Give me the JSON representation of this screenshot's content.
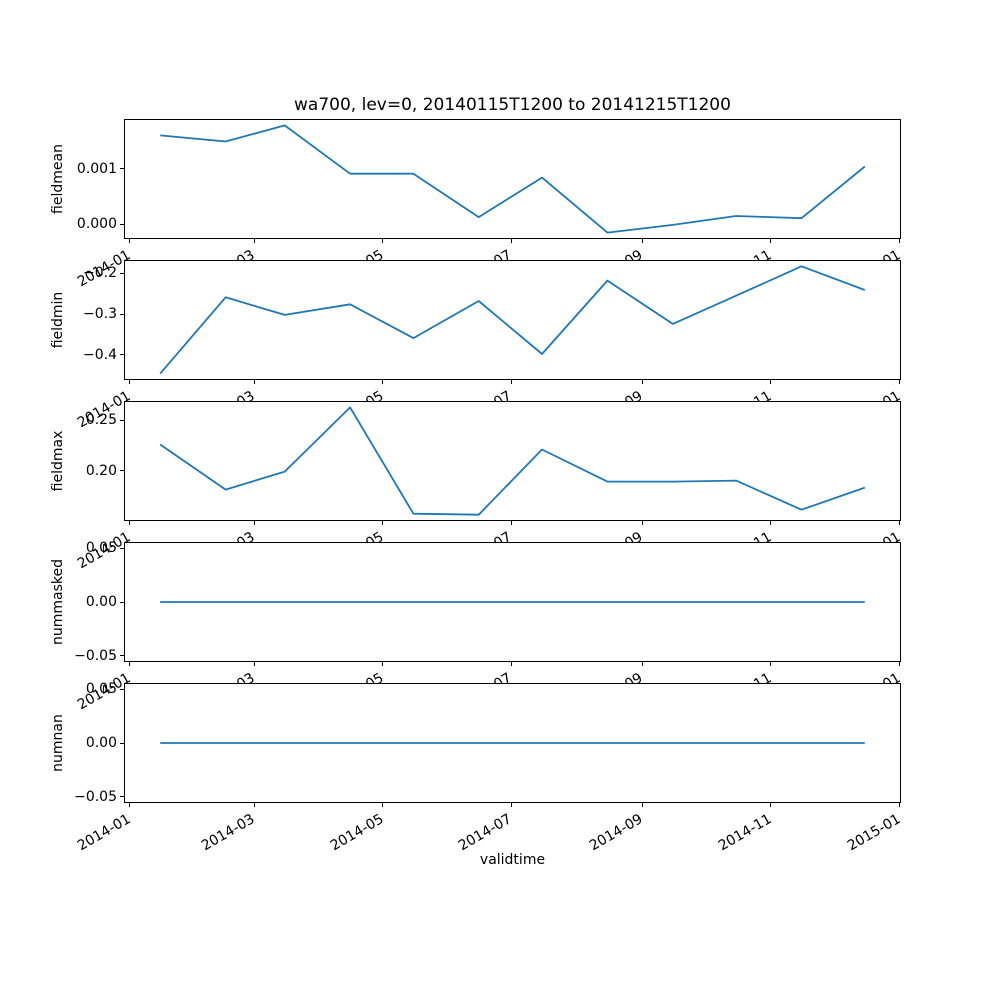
{
  "figure": {
    "title": "wa700, lev=0, 20140115T1200 to 20141215T1200",
    "xlabel": "validtime"
  },
  "chart_data": {
    "type": "line",
    "title": "wa700, lev=0, 20140115T1200 to 20141215T1200",
    "xlabel": "validtime",
    "line_color": "#1f77b4",
    "grid": false,
    "legend": false,
    "x_dates": [
      "2014-01-15T1200",
      "2014-02-15T1200",
      "2014-03-15T1200",
      "2014-04-15T1200",
      "2014-05-15T1200",
      "2014-06-15T1200",
      "2014-07-15T1200",
      "2014-08-15T1200",
      "2014-09-15T1200",
      "2014-10-15T1200",
      "2014-11-15T1200",
      "2014-12-15T1200"
    ],
    "x_days": [
      14.5,
      45.5,
      73.5,
      104.5,
      134.5,
      165.5,
      195.5,
      226.5,
      257.5,
      287.5,
      318.5,
      348.5
    ],
    "xlim": [
      -2.2,
      365.2
    ],
    "xticks": {
      "days": [
        0,
        59,
        120,
        181,
        243,
        304,
        365
      ],
      "labels": [
        "2014-01",
        "2014-03",
        "2014-05",
        "2014-07",
        "2014-09",
        "2014-11",
        "2015-01"
      ]
    },
    "subplots": [
      {
        "ylabel": "fieldmean",
        "values": [
          0.0016,
          0.00149,
          0.00178,
          0.00091,
          0.00091,
          0.00013,
          0.00084,
          -0.00015,
          -1e-05,
          0.00015,
          0.00011,
          0.00104
        ],
        "ylim": [
          -0.0002465,
          0.0018765
        ],
        "yticks": [
          {
            "value": 0.001,
            "label": "0.001"
          },
          {
            "value": 0.0,
            "label": "0.000"
          }
        ]
      },
      {
        "ylabel": "fieldmin",
        "values": [
          -0.446,
          -0.259,
          -0.302,
          -0.276,
          -0.359,
          -0.268,
          -0.398,
          -0.218,
          -0.324,
          -0.255,
          -0.183,
          -0.241
        ],
        "ylim": [
          -0.4592,
          -0.1699
        ],
        "yticks": [
          {
            "value": -0.2,
            "label": "−0.2"
          },
          {
            "value": -0.3,
            "label": "−0.3"
          },
          {
            "value": -0.4,
            "label": "−0.4"
          }
        ]
      },
      {
        "ylabel": "fieldmax",
        "values": [
          0.226,
          0.181,
          0.199,
          0.263,
          0.157,
          0.156,
          0.221,
          0.189,
          0.189,
          0.19,
          0.161,
          0.183
        ],
        "ylim": [
          0.1507,
          0.2684
        ],
        "yticks": [
          {
            "value": 0.25,
            "label": "0.25"
          },
          {
            "value": 0.2,
            "label": "0.20"
          }
        ]
      },
      {
        "ylabel": "nummasked",
        "values": [
          0,
          0,
          0,
          0,
          0,
          0,
          0,
          0,
          0,
          0,
          0,
          0
        ],
        "ylim": [
          -0.055,
          0.055
        ],
        "yticks": [
          {
            "value": 0.05,
            "label": "0.05"
          },
          {
            "value": 0.0,
            "label": "0.00"
          },
          {
            "value": -0.05,
            "label": "−0.05"
          }
        ]
      },
      {
        "ylabel": "numnan",
        "values": [
          0,
          0,
          0,
          0,
          0,
          0,
          0,
          0,
          0,
          0,
          0,
          0
        ],
        "ylim": [
          -0.055,
          0.055
        ],
        "yticks": [
          {
            "value": 0.05,
            "label": "0.05"
          },
          {
            "value": 0.0,
            "label": "0.00"
          },
          {
            "value": -0.05,
            "label": "−0.05"
          }
        ]
      }
    ]
  }
}
